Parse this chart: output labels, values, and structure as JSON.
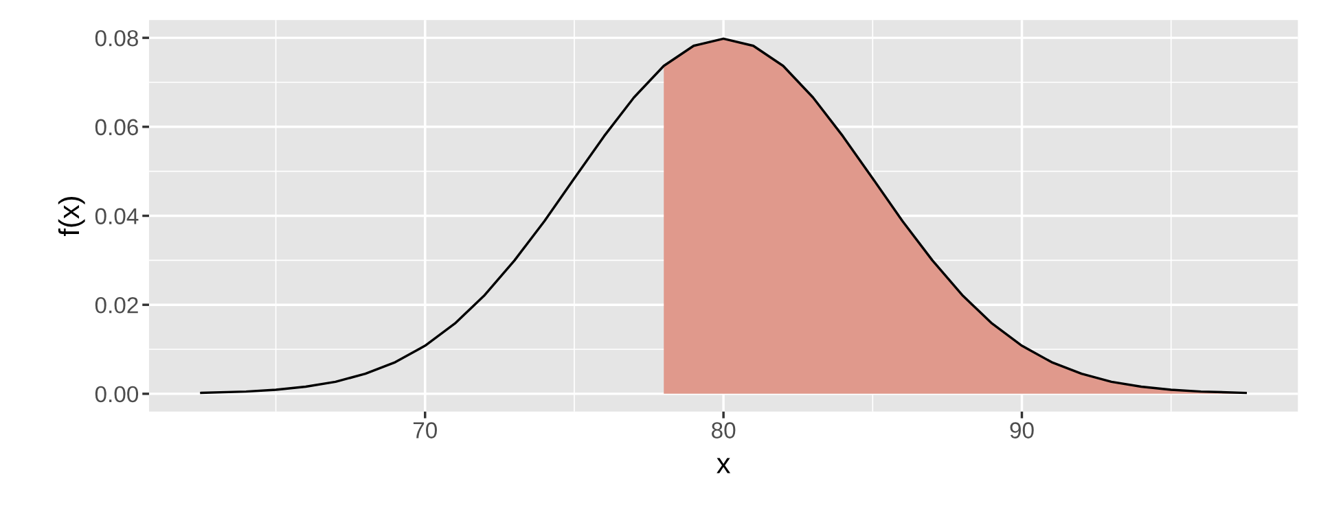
{
  "chart_data": {
    "type": "line",
    "xlabel": "x",
    "ylabel": "f(x)",
    "xlim": [
      60.75,
      99.25
    ],
    "ylim": [
      -0.004,
      0.084
    ],
    "xticks": [
      70,
      80,
      90
    ],
    "yticks": [
      {
        "value": 0,
        "label": "0.00"
      },
      {
        "value": 0.02,
        "label": "0.02"
      },
      {
        "value": 0.04,
        "label": "0.04"
      },
      {
        "value": 0.06,
        "label": "0.06"
      },
      {
        "value": 0.08,
        "label": "0.08"
      }
    ],
    "grid": true,
    "series": [
      {
        "type": "area",
        "color": "#e0998c",
        "x": [
          78,
          79,
          80,
          81,
          82,
          83,
          84,
          85,
          86,
          87,
          88,
          89,
          90,
          91,
          92,
          93,
          94,
          95,
          96,
          97.5
        ],
        "values": [
          0.0737,
          0.0782,
          0.0798,
          0.0782,
          0.0737,
          0.0666,
          0.0579,
          0.0484,
          0.0388,
          0.03,
          0.0222,
          0.0158,
          0.0108,
          0.0071,
          0.0045,
          0.0027,
          0.0016,
          0.0009,
          0.0005,
          0.0002
        ]
      },
      {
        "color": "#000000",
        "x": [
          62.5,
          64,
          65,
          66,
          67,
          68,
          69,
          70,
          71,
          72,
          73,
          74,
          75,
          76,
          77,
          78,
          79,
          80,
          81,
          82,
          83,
          84,
          85,
          86,
          87,
          88,
          89,
          90,
          91,
          92,
          93,
          94,
          95,
          96,
          97.5
        ],
        "values": [
          0.0002,
          0.0005,
          0.0009,
          0.0016,
          0.0027,
          0.0045,
          0.0071,
          0.0108,
          0.0158,
          0.0222,
          0.03,
          0.0388,
          0.0484,
          0.0579,
          0.0666,
          0.0737,
          0.0782,
          0.0798,
          0.0782,
          0.0737,
          0.0666,
          0.0579,
          0.0484,
          0.0388,
          0.03,
          0.0222,
          0.0158,
          0.0108,
          0.0071,
          0.0045,
          0.0027,
          0.0016,
          0.0009,
          0.0005,
          0.0002
        ]
      }
    ]
  }
}
